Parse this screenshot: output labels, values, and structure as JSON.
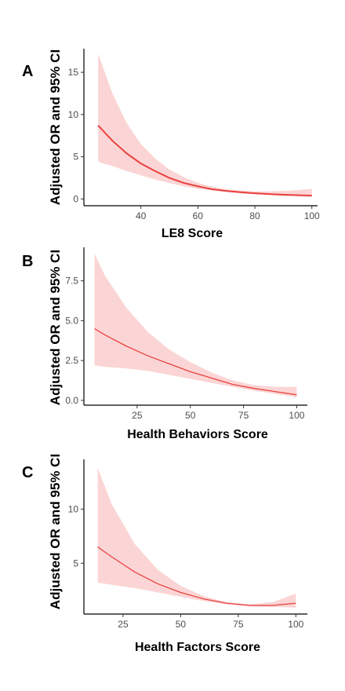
{
  "chart_data": [
    {
      "panel_letter": "A",
      "type": "line",
      "xlabel": "LE8 Score",
      "ylabel": "Adjusted OR and 95% CI",
      "xlim": [
        20,
        102
      ],
      "ylim": [
        -0.8,
        17.8
      ],
      "xticks": [
        40,
        60,
        80,
        100
      ],
      "xtick_labels": [
        "40",
        "60",
        "80",
        "100"
      ],
      "yticks": [
        0,
        5,
        10,
        15
      ],
      "ytick_labels": [
        "0",
        "5",
        "10",
        "15"
      ],
      "line_color": "#e8423f",
      "band_color": "#fbd5d5",
      "series": [
        {
          "x": [
            25,
            30,
            35,
            40,
            45,
            50,
            55,
            60,
            65,
            70,
            75,
            80,
            85,
            90,
            95,
            100
          ],
          "y": [
            8.7,
            6.9,
            5.4,
            4.2,
            3.3,
            2.5,
            1.9,
            1.5,
            1.15,
            0.95,
            0.8,
            0.68,
            0.58,
            0.5,
            0.45,
            0.4
          ],
          "lower": [
            4.4,
            3.9,
            3.3,
            2.8,
            2.3,
            1.9,
            1.5,
            1.2,
            1.0,
            0.8,
            0.65,
            0.55,
            0.45,
            0.35,
            0.3,
            0.25
          ],
          "upper": [
            17.2,
            12.5,
            9.0,
            6.5,
            4.8,
            3.5,
            2.6,
            1.9,
            1.45,
            1.15,
            1.0,
            0.9,
            0.9,
            0.95,
            1.05,
            1.2
          ]
        }
      ]
    },
    {
      "panel_letter": "B",
      "type": "line",
      "xlabel": "Health Behaviors Score",
      "ylabel": "Adjusted OR and 95% CI",
      "xlim": [
        0,
        105
      ],
      "ylim": [
        -0.3,
        9.6
      ],
      "xticks": [
        25,
        50,
        75,
        100
      ],
      "xtick_labels": [
        "25",
        "50",
        "75",
        "100"
      ],
      "yticks": [
        0,
        2.5,
        5,
        7.5
      ],
      "ytick_labels": [
        "0.0",
        "2.5",
        "5.0",
        "7.5"
      ],
      "line_color": "#e8423f",
      "band_color": "#fbd5d5",
      "series": [
        {
          "x": [
            5,
            10,
            20,
            30,
            40,
            50,
            60,
            70,
            80,
            90,
            100
          ],
          "y": [
            4.5,
            4.1,
            3.4,
            2.8,
            2.3,
            1.8,
            1.4,
            1.0,
            0.75,
            0.55,
            0.35
          ],
          "lower": [
            2.2,
            2.1,
            2.0,
            1.85,
            1.6,
            1.35,
            1.1,
            0.85,
            0.6,
            0.4,
            0.2
          ],
          "upper": [
            9.2,
            7.8,
            5.8,
            4.3,
            3.2,
            2.4,
            1.75,
            1.25,
            0.95,
            0.85,
            0.85
          ]
        }
      ]
    },
    {
      "panel_letter": "C",
      "type": "line",
      "xlabel": "Health Factors Score",
      "ylabel": "Adjusted OR and 95% CI",
      "xlim": [
        8,
        105
      ],
      "ylim": [
        0.3,
        14.6
      ],
      "xticks": [
        25,
        50,
        75,
        100
      ],
      "xtick_labels": [
        "25",
        "50",
        "75",
        "100"
      ],
      "yticks": [
        5,
        10
      ],
      "ytick_labels": [
        "5",
        "10"
      ],
      "line_color": "#e8423f",
      "band_color": "#fbd5d5",
      "series": [
        {
          "x": [
            14,
            20,
            30,
            40,
            50,
            60,
            70,
            80,
            90,
            100
          ],
          "y": [
            6.5,
            5.6,
            4.2,
            3.1,
            2.3,
            1.7,
            1.3,
            1.1,
            1.1,
            1.3
          ],
          "lower": [
            3.2,
            3.0,
            2.7,
            2.3,
            1.9,
            1.5,
            1.2,
            1.0,
            0.95,
            0.9
          ],
          "upper": [
            13.8,
            10.5,
            6.8,
            4.4,
            2.9,
            1.95,
            1.4,
            1.2,
            1.4,
            2.2
          ]
        }
      ]
    }
  ]
}
